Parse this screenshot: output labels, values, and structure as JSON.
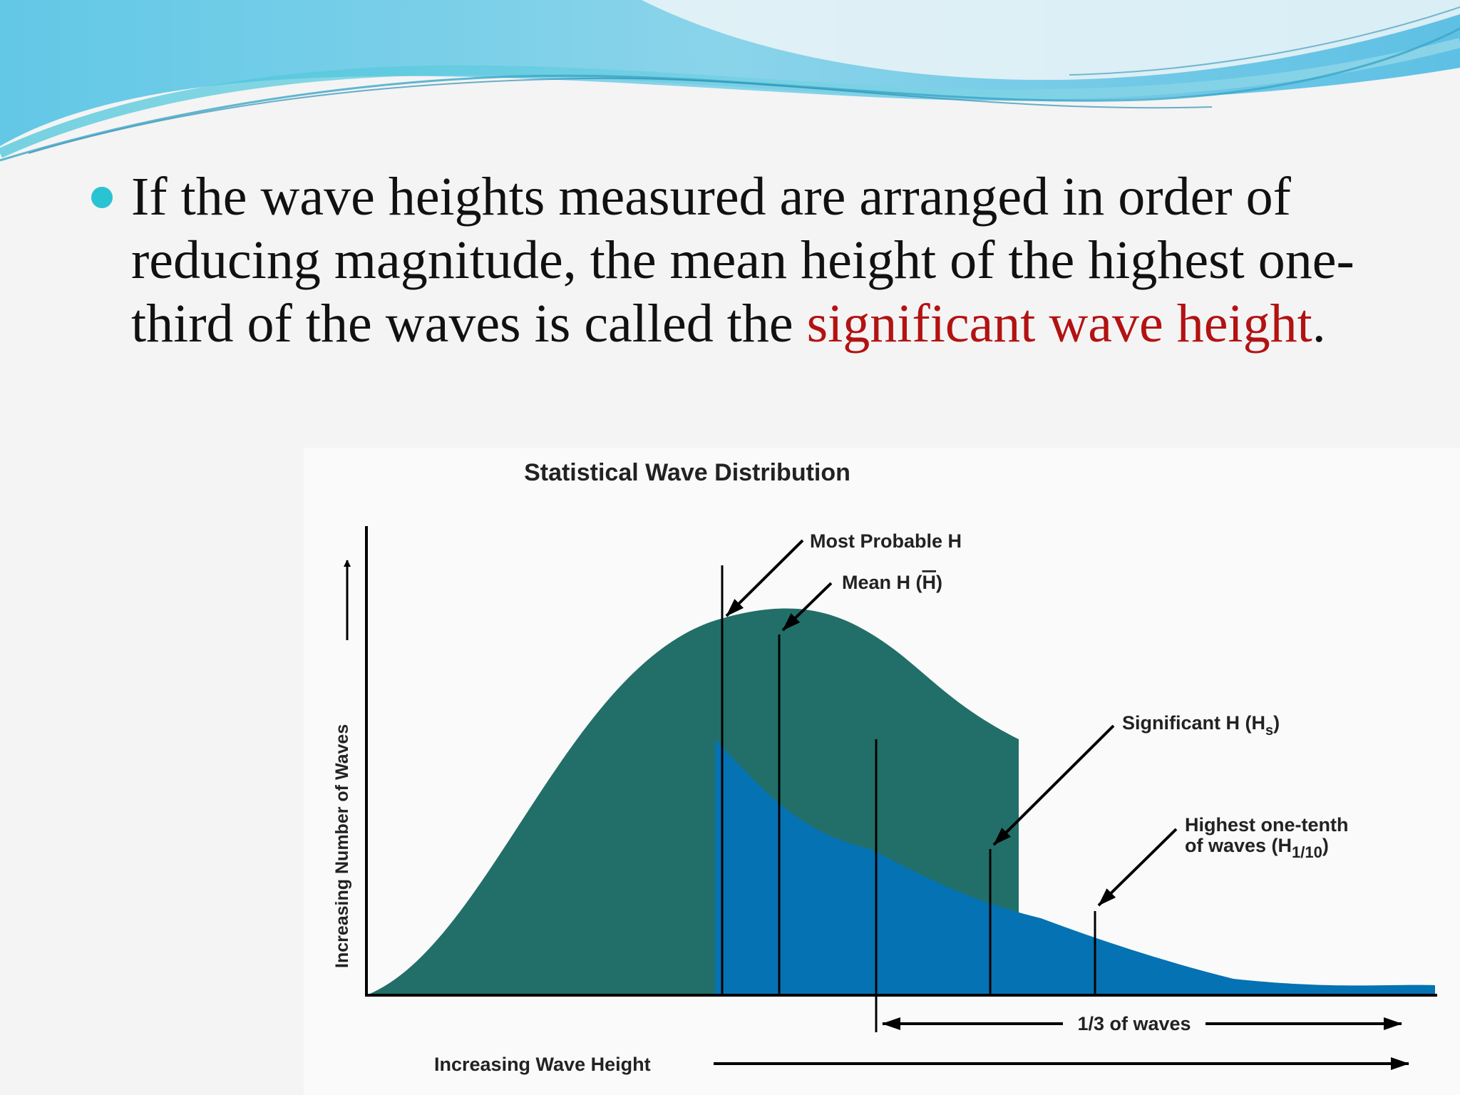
{
  "slide": {
    "bullet_parts": [
      "If the wave heights measured are arranged in order of reducing magnitude, the mean height of the highest one-third of the waves is called the ",
      "significant wave height",
      "."
    ],
    "highlight_color": "#b31212",
    "bullet_color": "#2ac3d2"
  },
  "diagram": {
    "title": "Statistical Wave Distribution",
    "y_axis_label": "Increasing Number of Waves",
    "x_axis_label": "Increasing Wave Height",
    "labels": {
      "most_probable": "Most Probable H",
      "mean_prefix": "Mean H (",
      "mean_symbol": "H",
      "mean_suffix": ")",
      "significant_prefix": "Significant H (H",
      "significant_sub": "s",
      "significant_suffix": ")",
      "tenth_line1": "Highest one-tenth",
      "tenth_line2_prefix": "of waves (H",
      "tenth_sub": "1/10",
      "tenth_suffix": ")",
      "third": "1/3 of waves"
    },
    "colors": {
      "lower_fill": "#216f68",
      "upper_fill": "#0572b3"
    }
  }
}
